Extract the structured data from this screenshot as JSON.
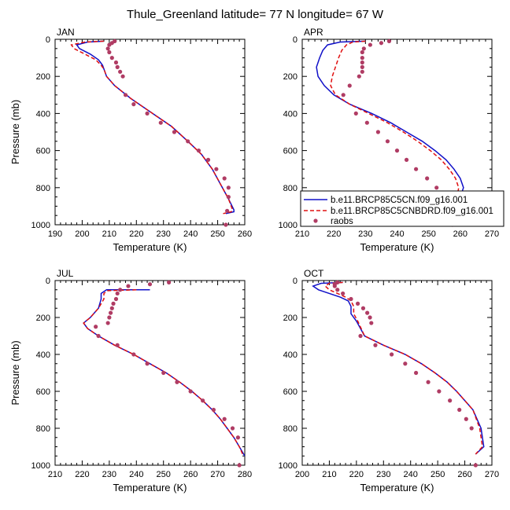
{
  "title": "Thule_Greenland  latitude= 77 N longitude= 67 W",
  "colors": {
    "model1": "#1010c8",
    "model2": "#e01010",
    "raobs": "#b03c64"
  },
  "legend": {
    "entries": [
      "b.e11.BRCP85C5CN.f09_g16.001",
      "b.e11.BRCP85C5CNBDRD.f09_g16.001",
      "raobs"
    ]
  },
  "chart_data": [
    {
      "type": "line",
      "panel": "JAN",
      "xlabel": "Temperature (K)",
      "ylabel": "Pressure (mb)",
      "xlim": [
        190,
        260
      ],
      "ylim": [
        1000,
        0
      ],
      "xticks": [
        190,
        200,
        210,
        220,
        230,
        240,
        250,
        260
      ],
      "yticks": [
        0,
        200,
        400,
        600,
        800,
        1000
      ],
      "series": [
        {
          "name": "b.e11.BRCP85C5CN.f09_g16.001",
          "style": "solid",
          "x": [
            208,
            202,
            198,
            199,
            203,
            206,
            207.5,
            208,
            209,
            212,
            218,
            226,
            233,
            239,
            244,
            248,
            251,
            254,
            256,
            256,
            253
          ],
          "y": [
            10,
            15,
            30,
            50,
            80,
            110,
            140,
            160,
            200,
            250,
            320,
            400,
            470,
            550,
            620,
            700,
            780,
            860,
            920,
            930,
            940
          ]
        },
        {
          "name": "b.e11.BRCP85C5CNBDRD.f09_g16.001",
          "style": "dashed",
          "x": [
            208,
            201,
            196,
            197,
            201,
            205,
            207,
            208,
            209,
            212,
            218,
            226,
            233,
            239,
            244,
            248,
            251,
            254,
            255.5,
            255,
            252
          ],
          "y": [
            10,
            15,
            30,
            50,
            80,
            110,
            140,
            160,
            200,
            250,
            320,
            400,
            470,
            550,
            620,
            700,
            780,
            860,
            920,
            930,
            940
          ]
        },
        {
          "name": "raobs",
          "style": "markers",
          "x": [
            212,
            211,
            210,
            209.5,
            210,
            211,
            212.5,
            213,
            214,
            215,
            216,
            219,
            224,
            229,
            234,
            239,
            243,
            246.5,
            249.5,
            252.5,
            254,
            254,
            253.5,
            253
          ],
          "y": [
            10,
            20,
            30,
            50,
            70,
            100,
            125,
            150,
            175,
            200,
            300,
            350,
            400,
            450,
            500,
            550,
            600,
            650,
            700,
            750,
            800,
            850,
            925,
            1000
          ]
        }
      ]
    },
    {
      "type": "line",
      "panel": "APR",
      "xlabel": "Temperature (K)",
      "ylabel": "",
      "xlim": [
        210,
        270
      ],
      "ylim": [
        1000,
        0
      ],
      "xticks": [
        210,
        220,
        230,
        240,
        250,
        260,
        270
      ],
      "yticks": [
        0,
        200,
        400,
        600,
        800,
        1000
      ],
      "series": [
        {
          "name": "b.e11.BRCP85C5CN.f09_g16.001",
          "style": "solid",
          "x": [
            230,
            222,
            218,
            216.5,
            215.5,
            214.5,
            215,
            217,
            220,
            225,
            232,
            238,
            243,
            248,
            252,
            255.5,
            258,
            260,
            261,
            260
          ],
          "y": [
            10,
            15,
            30,
            60,
            100,
            150,
            200,
            250,
            300,
            350,
            400,
            450,
            500,
            550,
            600,
            650,
            700,
            750,
            800,
            850
          ]
        },
        {
          "name": "b.e11.BRCP85C5CNBDRD.f09_g16.001",
          "style": "dashed",
          "x": [
            230,
            226,
            224,
            222.5,
            221.5,
            220.5,
            219.5,
            219,
            220.5,
            225,
            231,
            237,
            242,
            246.5,
            250.5,
            254,
            256.5,
            258.5,
            259.5,
            259
          ],
          "y": [
            10,
            15,
            30,
            60,
            100,
            150,
            200,
            250,
            300,
            350,
            400,
            450,
            500,
            550,
            600,
            650,
            700,
            750,
            800,
            850
          ]
        },
        {
          "name": "raobs",
          "style": "markers",
          "x": [
            237.5,
            235,
            231.5,
            229.5,
            229,
            229,
            229,
            229,
            229,
            228,
            225,
            223,
            227,
            230.5,
            234,
            237,
            240,
            243,
            246,
            249.5,
            252.5,
            255,
            257.5
          ],
          "y": [
            10,
            20,
            30,
            50,
            70,
            100,
            125,
            150,
            175,
            200,
            250,
            300,
            400,
            450,
            500,
            550,
            600,
            650,
            700,
            750,
            800,
            850,
            1000
          ]
        }
      ]
    },
    {
      "type": "line",
      "panel": "JUL",
      "xlabel": "Temperature (K)",
      "ylabel": "Pressure (mb)",
      "xlim": [
        210,
        280
      ],
      "ylim": [
        1000,
        0
      ],
      "xticks": [
        210,
        220,
        230,
        240,
        250,
        260,
        270,
        280
      ],
      "yticks": [
        0,
        200,
        400,
        600,
        800,
        1000
      ],
      "series": [
        {
          "name": "b.e11.BRCP85C5CN.f09_g16.001",
          "style": "solid",
          "x": [
            245,
            229,
            227,
            227,
            226,
            223,
            220.5,
            222,
            226,
            232,
            239,
            245,
            251,
            256,
            260.5,
            264.5,
            268,
            271,
            273.5,
            276,
            278,
            280
          ],
          "y": [
            50,
            50,
            70,
            100,
            150,
            200,
            230,
            260,
            300,
            350,
            400,
            450,
            500,
            550,
            600,
            650,
            700,
            750,
            800,
            850,
            900,
            950
          ]
        },
        {
          "name": "b.e11.BRCP85C5CNBDRD.f09_g16.001",
          "style": "dashed",
          "x": [
            240,
            229.5,
            228,
            228,
            226,
            223,
            220.5,
            222,
            226,
            232,
            239,
            245,
            251,
            256,
            260.5,
            264.5,
            268,
            271,
            273.5,
            276,
            278,
            279.5
          ],
          "y": [
            50,
            55,
            70,
            100,
            150,
            200,
            230,
            260,
            300,
            350,
            400,
            450,
            500,
            550,
            600,
            650,
            700,
            750,
            800,
            850,
            900,
            950
          ]
        },
        {
          "name": "raobs",
          "style": "markers",
          "x": [
            252,
            245,
            237,
            234,
            233,
            232.5,
            231.5,
            231,
            230.5,
            230,
            229.5,
            225,
            226,
            233,
            239,
            244,
            250,
            255,
            260,
            264.5,
            268.5,
            272.5,
            275.5,
            277.5,
            278
          ],
          "y": [
            10,
            20,
            30,
            50,
            70,
            100,
            125,
            150,
            175,
            200,
            230,
            250,
            300,
            350,
            400,
            450,
            500,
            550,
            600,
            650,
            700,
            750,
            800,
            850,
            1000
          ]
        }
      ]
    },
    {
      "type": "line",
      "panel": "OCT",
      "xlabel": "Temperature (K)",
      "ylabel": "",
      "xlim": [
        200,
        270
      ],
      "ylim": [
        1000,
        0
      ],
      "xticks": [
        200,
        210,
        220,
        230,
        240,
        250,
        260,
        270
      ],
      "yticks": [
        0,
        200,
        400,
        600,
        800,
        1000
      ],
      "series": [
        {
          "name": "b.e11.BRCP85C5CN.f09_g16.001",
          "style": "solid",
          "x": [
            215,
            207,
            204,
            206,
            210,
            214,
            217,
            218,
            218,
            220,
            223,
            230,
            238,
            244,
            249,
            253.5,
            257,
            260,
            263,
            266,
            267,
            264
          ],
          "y": [
            10,
            15,
            30,
            50,
            70,
            90,
            110,
            140,
            180,
            220,
            300,
            350,
            400,
            450,
            500,
            550,
            600,
            650,
            700,
            800,
            900,
            940
          ]
        },
        {
          "name": "b.e11.BRCP85C5CNBDRD.f09_g16.001",
          "style": "dashed",
          "x": [
            215,
            210,
            208.5,
            210,
            213,
            216,
            218,
            219,
            219,
            220.5,
            223,
            230,
            238,
            244,
            249,
            253.5,
            257,
            260,
            263,
            265.5,
            266.5,
            264
          ],
          "y": [
            10,
            15,
            30,
            50,
            70,
            90,
            110,
            140,
            180,
            220,
            300,
            350,
            400,
            450,
            500,
            550,
            600,
            650,
            700,
            800,
            900,
            940
          ]
        },
        {
          "name": "raobs",
          "style": "markers",
          "x": [
            213,
            212,
            212,
            213,
            215,
            218,
            220.5,
            222.5,
            224,
            225,
            225.5,
            221.5,
            227,
            233,
            238,
            242,
            246.5,
            250.5,
            254.5,
            258,
            260.5,
            262.5,
            264
          ],
          "y": [
            10,
            20,
            30,
            50,
            70,
            100,
            125,
            150,
            175,
            200,
            230,
            300,
            350,
            400,
            450,
            500,
            550,
            600,
            650,
            700,
            750,
            800,
            1000
          ]
        }
      ]
    }
  ]
}
